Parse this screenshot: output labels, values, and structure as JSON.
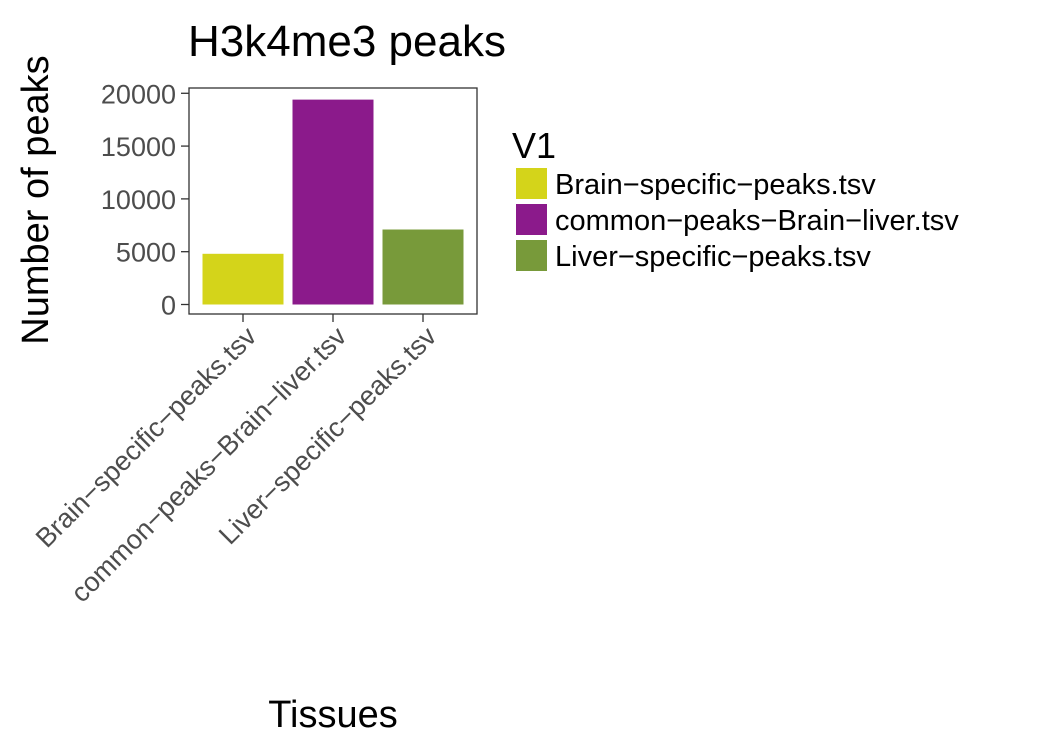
{
  "chart_data": {
    "type": "bar",
    "title": "H3k4me3 peaks",
    "xlabel": "Tissues",
    "ylabel": "Number of peaks",
    "categories": [
      "Brain−specific−peaks.tsv",
      "common−peaks−Brain−liver.tsv",
      "Liver−specific−peaks.tsv"
    ],
    "values": [
      4800,
      19400,
      7100
    ],
    "colors": [
      "#d4d41a",
      "#8b1a8b",
      "#789a3a"
    ],
    "ylim": [
      -900,
      20500
    ],
    "yticks": [
      0,
      5000,
      10000,
      15000,
      20000
    ],
    "ytick_labels": [
      "0",
      "5000",
      "10000",
      "15000",
      "20000"
    ],
    "grid": false,
    "legend": {
      "title": "V1",
      "position": "right",
      "entries": [
        "Brain−specific−peaks.tsv",
        "common−peaks−Brain−liver.tsv",
        "Liver−specific−peaks.tsv"
      ]
    }
  }
}
